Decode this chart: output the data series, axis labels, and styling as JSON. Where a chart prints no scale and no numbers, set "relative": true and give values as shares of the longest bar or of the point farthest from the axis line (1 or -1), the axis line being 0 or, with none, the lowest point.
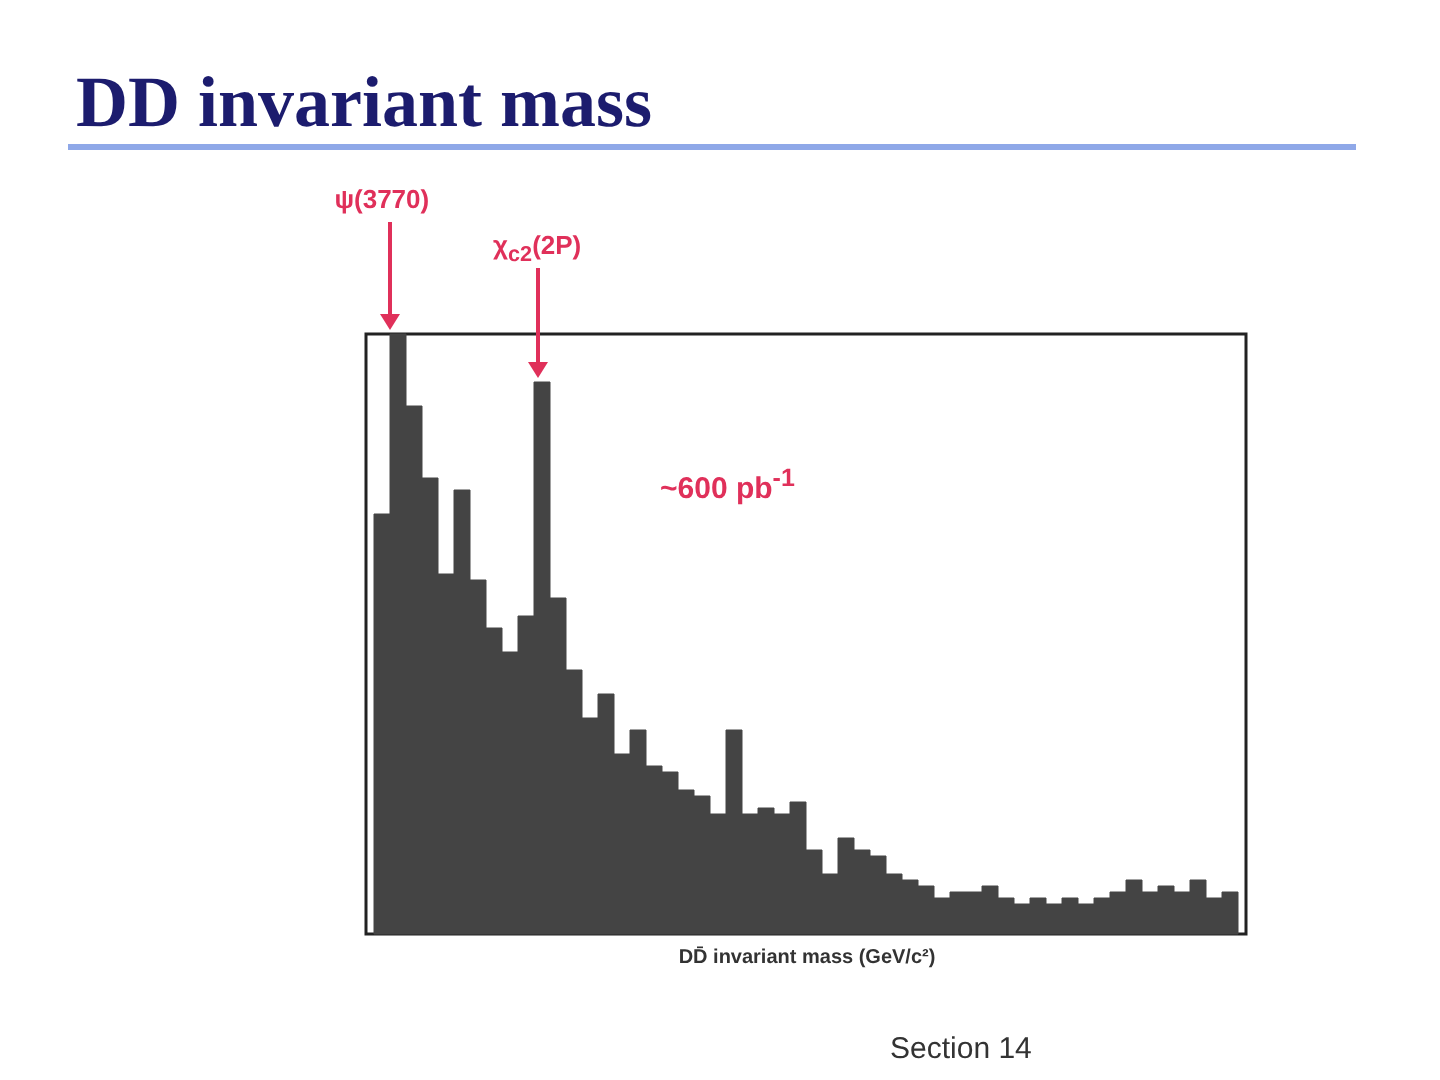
{
  "chart_data": {
    "type": "bar",
    "title": "DD invariant mass",
    "xlabel": "DD̄ invariant mass (GeV/c²)",
    "relative": true,
    "color": "#444444",
    "categories": [
      null,
      null,
      null,
      null,
      null,
      null,
      null,
      null,
      null,
      null,
      null,
      null,
      null,
      null,
      null,
      null,
      null,
      null,
      null,
      null,
      null,
      null,
      null,
      null,
      null,
      null,
      null,
      null,
      null,
      null,
      null,
      null,
      null,
      null,
      null,
      null,
      null,
      null,
      null,
      null,
      null,
      null,
      null,
      null,
      null,
      null,
      null,
      null,
      null,
      null,
      null,
      null,
      null,
      null
    ],
    "values": [
      0.7,
      1,
      0.88,
      0.76,
      0.6,
      0.74,
      0.59,
      0.51,
      0.47,
      0.53,
      0.92,
      0.56,
      0.44,
      0.36,
      0.4,
      0.3,
      0.34,
      0.28,
      0.27,
      0.24,
      0.23,
      0.2,
      0.34,
      0.2,
      0.21,
      0.2,
      0.22,
      0.14,
      0.1,
      0.16,
      0.14,
      0.13,
      0.1,
      0.09,
      0.08,
      0.06,
      0.07,
      0.07,
      0.08,
      0.06,
      0.05,
      0.06,
      0.05,
      0.06,
      0.05,
      0.06,
      0.07,
      0.09,
      0.07,
      0.08,
      0.07,
      0.09,
      0.06,
      0.07
    ],
    "annotations": [
      "ψ(3770)",
      "χ$_{c2}$(2P)",
      "~600 pb$^{-1}$",
      "Section 14"
    ]
  }
}
